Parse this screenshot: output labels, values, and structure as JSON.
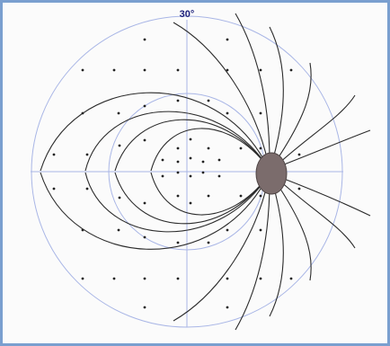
{
  "figure": {
    "angle_label": "30°"
  },
  "colors": {
    "frame": "#7a9fcf",
    "guide": "#a9b6e6",
    "field_line": "#2b2b2b",
    "dot": "#222222",
    "pole_fill": "#7b6c6c",
    "pole_stroke": "#4f4545",
    "label": "#1b1f7a"
  }
}
